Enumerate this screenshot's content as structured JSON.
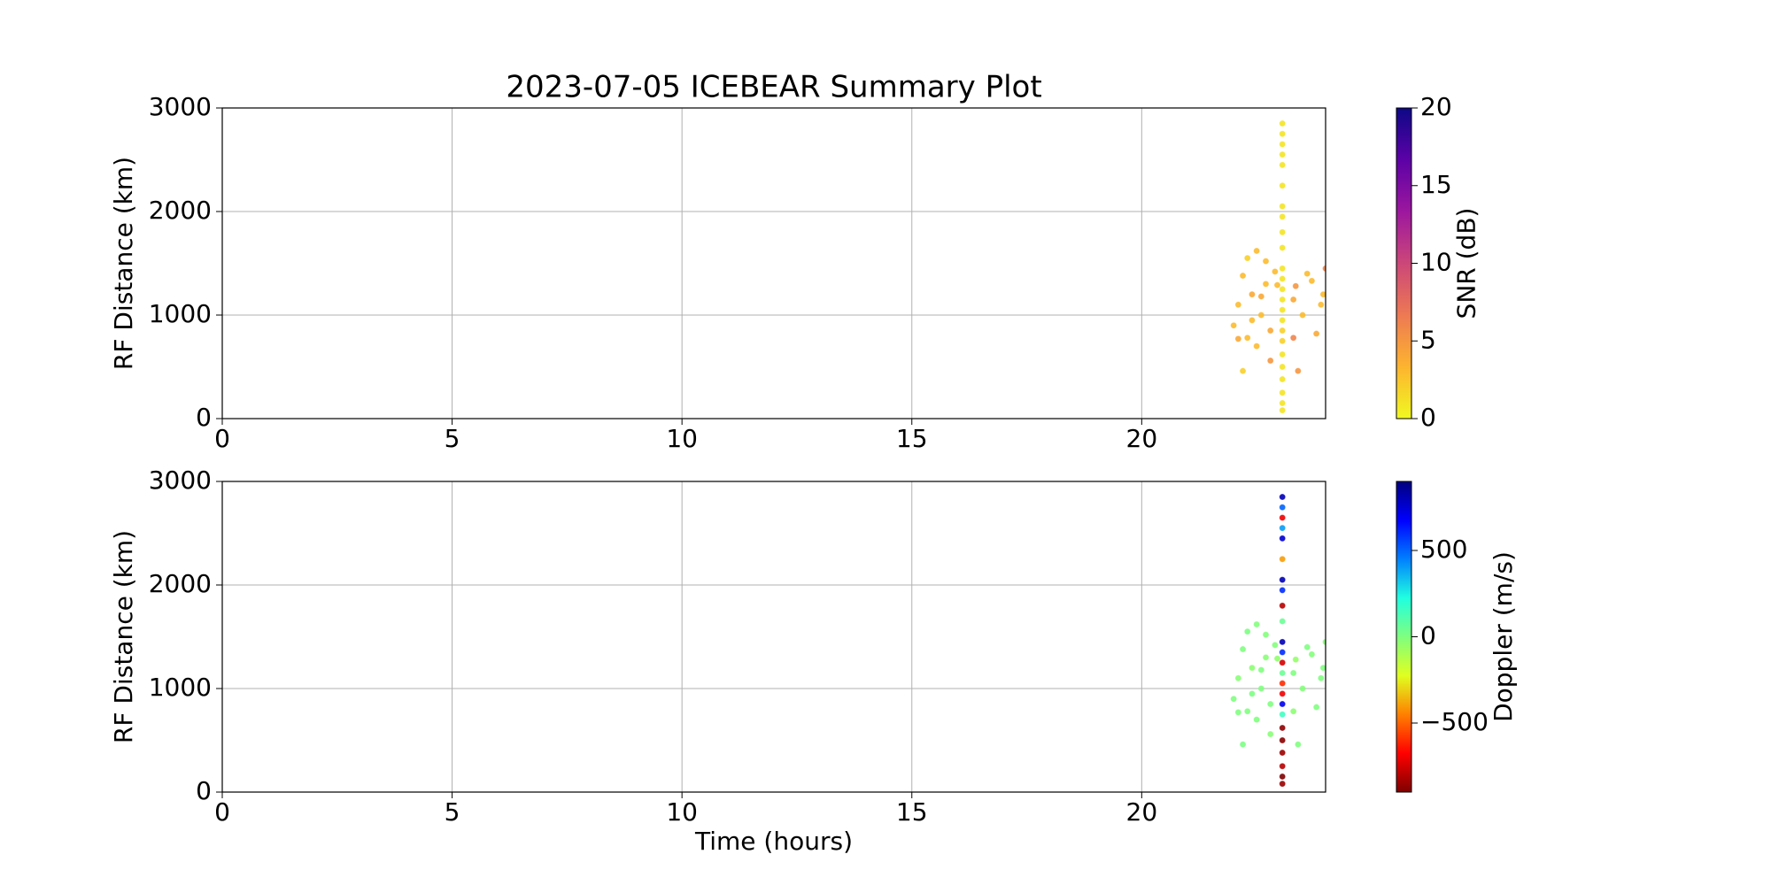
{
  "chart_data": [
    {
      "type": "scatter",
      "title": "2023-07-05 ICEBEAR Summary Plot",
      "ylabel": "RF Distance (km)",
      "x": [
        23.06,
        23.06,
        23.06,
        23.06,
        23.06,
        23.06,
        23.06,
        23.06,
        23.06,
        23.06,
        23.06,
        23.06,
        23.06,
        23.06,
        23.06,
        23.06,
        23.06,
        23.06,
        23.06,
        23.06,
        23.06,
        23.06,
        23.06,
        23.06,
        22.0,
        22.1,
        22.2,
        22.3,
        22.5,
        22.3,
        22.4,
        22.6,
        22.2,
        22.7,
        22.8,
        22.9,
        22.5,
        22.8,
        23.3,
        23.5,
        23.6,
        23.8,
        24.0,
        23.95,
        22.4,
        22.6,
        22.7,
        23.3,
        23.4,
        22.95,
        23.35,
        23.9,
        22.1,
        23.7
      ],
      "y": [
        80,
        150,
        250,
        380,
        500,
        620,
        750,
        850,
        950,
        1050,
        1150,
        1250,
        1350,
        1450,
        1650,
        1800,
        1950,
        2050,
        2250,
        2450,
        2550,
        2650,
        2750,
        2850,
        900,
        1100,
        1380,
        1550,
        1620,
        780,
        1200,
        1000,
        460,
        1300,
        850,
        1420,
        700,
        560,
        1150,
        1000,
        1400,
        820,
        1450,
        1200,
        950,
        1180,
        1520,
        780,
        460,
        1290,
        1280,
        1100,
        770,
        1330
      ],
      "c": [
        1,
        1,
        1,
        1,
        1,
        1,
        2,
        2,
        1,
        1,
        1,
        1,
        1,
        1,
        1,
        1,
        1,
        1,
        1,
        1,
        1,
        1,
        1,
        1,
        3,
        3,
        3,
        2,
        3,
        3,
        4,
        3,
        2,
        3,
        4,
        3,
        3,
        5,
        4,
        3,
        3,
        4,
        6,
        3,
        3,
        4,
        3,
        6,
        5,
        3,
        5,
        3,
        4,
        3
      ],
      "clabel": "SNR (dB)",
      "clim": [
        0,
        20
      ],
      "cticks": [
        0,
        5,
        10,
        15,
        20
      ],
      "cmap": [
        "#f0f921",
        "#fdb42f",
        "#ed7953",
        "#cc4778",
        "#9c179e",
        "#5c01a6",
        "#0d0887"
      ],
      "xlim": [
        0,
        24
      ],
      "xticks": [
        0,
        5,
        10,
        15,
        20
      ],
      "ylim": [
        0,
        3000
      ],
      "yticks": [
        0,
        1000,
        2000,
        3000
      ],
      "grid": true
    },
    {
      "type": "scatter",
      "ylabel": "RF Distance (km)",
      "xlabel": "Time (hours)",
      "x": [
        23.06,
        23.06,
        23.06,
        23.06,
        23.06,
        23.06,
        23.06,
        23.06,
        23.06,
        23.06,
        23.06,
        23.06,
        23.06,
        23.06,
        23.06,
        23.06,
        23.06,
        23.06,
        23.06,
        23.06,
        23.06,
        23.06,
        23.06,
        23.06,
        22.0,
        22.1,
        22.2,
        22.3,
        22.5,
        22.3,
        22.4,
        22.6,
        22.2,
        22.7,
        22.8,
        22.9,
        22.5,
        22.8,
        23.3,
        23.5,
        23.6,
        23.8,
        24.0,
        23.95,
        22.4,
        22.6,
        22.7,
        23.3,
        23.4,
        22.95,
        23.35,
        23.9,
        22.1,
        23.7
      ],
      "y": [
        80,
        150,
        250,
        380,
        500,
        620,
        750,
        850,
        950,
        1050,
        1150,
        1250,
        1350,
        1450,
        1650,
        1800,
        1950,
        2050,
        2250,
        2450,
        2550,
        2650,
        2750,
        2850,
        900,
        1100,
        1380,
        1550,
        1620,
        780,
        1200,
        1000,
        460,
        1300,
        850,
        1420,
        700,
        560,
        1150,
        1000,
        1400,
        820,
        1450,
        1200,
        950,
        1180,
        1520,
        780,
        460,
        1290,
        1280,
        1100,
        770,
        1330
      ],
      "c": [
        -850,
        -900,
        -800,
        -850,
        -880,
        -870,
        150,
        700,
        -700,
        -600,
        50,
        -750,
        600,
        800,
        50,
        -800,
        600,
        800,
        -400,
        750,
        400,
        -700,
        500,
        800,
        0,
        -20,
        0,
        10,
        -10,
        0,
        -30,
        0,
        10,
        -20,
        0,
        -10,
        0,
        -20,
        0,
        -10,
        0,
        0,
        -20,
        0,
        10,
        0,
        -10,
        -30,
        0,
        -40,
        -50,
        0,
        0,
        -10
      ],
      "clabel": "Doppler (m/s)",
      "clim": [
        -900,
        900
      ],
      "cticks": [
        {
          "value": -500,
          "label": "−500"
        },
        0,
        500
      ],
      "cmap": [
        "#7f0000",
        "#ff0000",
        "#ff8000",
        "#e0ff20",
        "#7fff7f",
        "#20ffe0",
        "#0080ff",
        "#0000ff",
        "#00007f"
      ],
      "xlim": [
        0,
        24
      ],
      "xticks": [
        0,
        5,
        10,
        15,
        20
      ],
      "ylim": [
        0,
        3000
      ],
      "yticks": [
        0,
        1000,
        2000,
        3000
      ],
      "grid": true
    }
  ]
}
